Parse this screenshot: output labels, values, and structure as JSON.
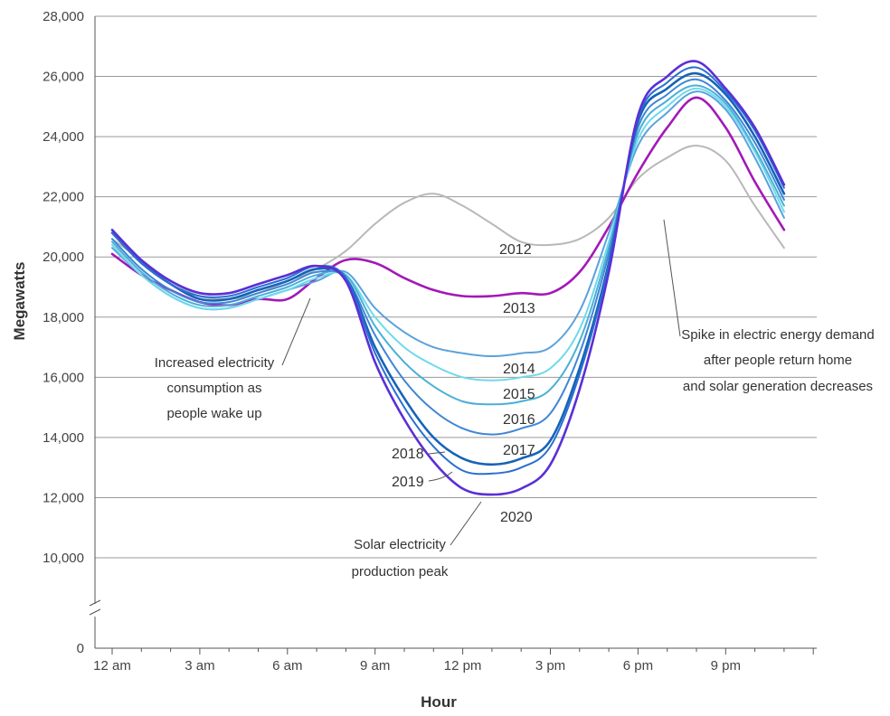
{
  "chart_data": {
    "type": "line",
    "title": "",
    "xlabel": "Hour",
    "ylabel": "Megawatts",
    "x_tick_labels": [
      "12 am",
      "3 am",
      "6 am",
      "9 am",
      "12 pm",
      "3 pm",
      "6 pm",
      "9 pm"
    ],
    "y_tick_labels": [
      "0",
      "10,000",
      "12,000",
      "14,000",
      "16,000",
      "18,000",
      "20,000",
      "22,000",
      "24,000",
      "26,000",
      "28,000"
    ],
    "ylim": [
      10000,
      28000
    ],
    "y_break": true,
    "grid": true,
    "x": [
      0,
      1,
      2,
      3,
      4,
      5,
      6,
      7,
      8,
      9,
      10,
      11,
      12,
      13,
      14,
      15,
      16,
      17,
      18,
      19,
      20,
      21,
      22,
      23
    ],
    "series": [
      {
        "name": "2012",
        "color": "#b8b8b8",
        "values": [
          20600,
          19900,
          19200,
          18700,
          18600,
          18800,
          19200,
          19600,
          20200,
          21100,
          21800,
          22100,
          21700,
          21100,
          20500,
          20400,
          20600,
          21300,
          22600,
          23300,
          23700,
          23200,
          21700,
          20300
        ]
      },
      {
        "name": "2013",
        "color": "#a318b8",
        "values": [
          20100,
          19400,
          18900,
          18500,
          18400,
          18600,
          18600,
          19300,
          19900,
          19800,
          19300,
          18900,
          18700,
          18700,
          18800,
          18800,
          19500,
          21000,
          22800,
          24300,
          25300,
          24300,
          22500,
          20900
        ]
      },
      {
        "name": "2014",
        "color": "#5aa2dc",
        "values": [
          20300,
          19400,
          18700,
          18300,
          18300,
          18600,
          18900,
          19200,
          19500,
          18300,
          17500,
          17000,
          16800,
          16700,
          16800,
          17000,
          18200,
          20800,
          23700,
          24800,
          25500,
          24900,
          23300,
          21300
        ]
      },
      {
        "name": "2015",
        "color": "#6fd9ec",
        "values": [
          20400,
          19400,
          18700,
          18300,
          18300,
          18600,
          18900,
          19300,
          19400,
          18000,
          17000,
          16400,
          16000,
          15900,
          16000,
          16300,
          17600,
          20500,
          23900,
          25000,
          25600,
          25000,
          23500,
          21500
        ]
      },
      {
        "name": "2016",
        "color": "#4ab0d6",
        "values": [
          20500,
          19500,
          18800,
          18400,
          18400,
          18700,
          19000,
          19400,
          19400,
          17700,
          16500,
          15700,
          15200,
          15100,
          15200,
          15600,
          17200,
          20300,
          24100,
          25200,
          25700,
          25100,
          23600,
          21700
        ]
      },
      {
        "name": "2017",
        "color": "#3f86d6",
        "values": [
          20600,
          19600,
          18900,
          18500,
          18500,
          18800,
          19100,
          19500,
          19300,
          17400,
          15900,
          14900,
          14300,
          14100,
          14300,
          14800,
          16800,
          20100,
          24300,
          25400,
          25900,
          25200,
          23800,
          21900
        ]
      },
      {
        "name": "2018",
        "color": "#1563b8",
        "values": [
          20800,
          19800,
          19100,
          18600,
          18600,
          18900,
          19200,
          19600,
          19300,
          17000,
          15300,
          14000,
          13300,
          13100,
          13300,
          13900,
          16300,
          19800,
          24500,
          25600,
          26100,
          25400,
          24000,
          22100
        ]
      },
      {
        "name": "2019",
        "color": "#2a6fd2",
        "values": [
          20800,
          19800,
          19100,
          18700,
          18700,
          19000,
          19300,
          19700,
          19300,
          16800,
          15000,
          13700,
          12900,
          12800,
          13000,
          13700,
          16100,
          19700,
          24600,
          25800,
          26300,
          25500,
          24200,
          22300
        ]
      },
      {
        "name": "2020",
        "color": "#5a2fd6",
        "values": [
          20900,
          19900,
          19200,
          18800,
          18800,
          19100,
          19400,
          19700,
          19200,
          16500,
          14600,
          13200,
          12300,
          12100,
          12300,
          13100,
          15600,
          19500,
          24700,
          26000,
          26500,
          25600,
          24300,
          22400
        ]
      }
    ],
    "series_labels": [
      "2012",
      "2013",
      "2014",
      "2015",
      "2016",
      "2017",
      "2018",
      "2019",
      "2020"
    ],
    "annotations": {
      "wake_up": [
        "Increased electricity",
        "consumption as",
        "people wake up"
      ],
      "solar_peak": [
        "Solar electricity",
        "production peak"
      ],
      "evening_spike": [
        "Spike in electric energy demand",
        "after people return home",
        "and solar generation decreases"
      ]
    }
  }
}
